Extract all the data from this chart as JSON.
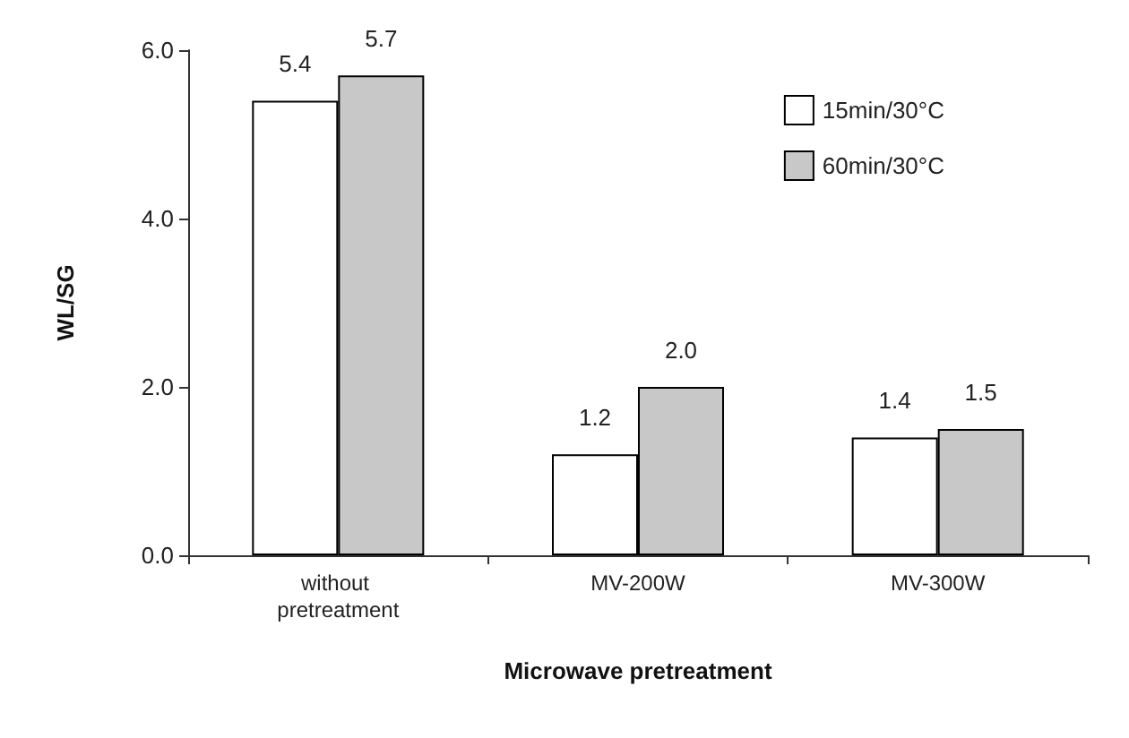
{
  "chart_data": {
    "type": "bar",
    "xlabel": "Microwave pretreatment",
    "ylabel": "WL/SG",
    "categories": [
      "without pretreatment",
      "MV-200W",
      "MV-300W"
    ],
    "series": [
      {
        "name": "15min/30°C",
        "color": "#ffffff",
        "values": [
          5.4,
          1.2,
          1.4
        ],
        "value_labels": [
          "5.4",
          "1.2",
          "1.4"
        ]
      },
      {
        "name": "60min/30°C",
        "color": "#c8c8c8",
        "values": [
          5.7,
          2.0,
          1.5
        ],
        "value_labels": [
          "5.7",
          "2.0",
          "1.5"
        ]
      }
    ],
    "ylim": [
      0,
      6
    ],
    "yticks": [
      {
        "value": 0,
        "label": "0.0"
      },
      {
        "value": 2,
        "label": "2.0"
      },
      {
        "value": 4,
        "label": "4.0"
      },
      {
        "value": 6,
        "label": "6.0"
      }
    ],
    "grid": false,
    "legend": "top right"
  }
}
